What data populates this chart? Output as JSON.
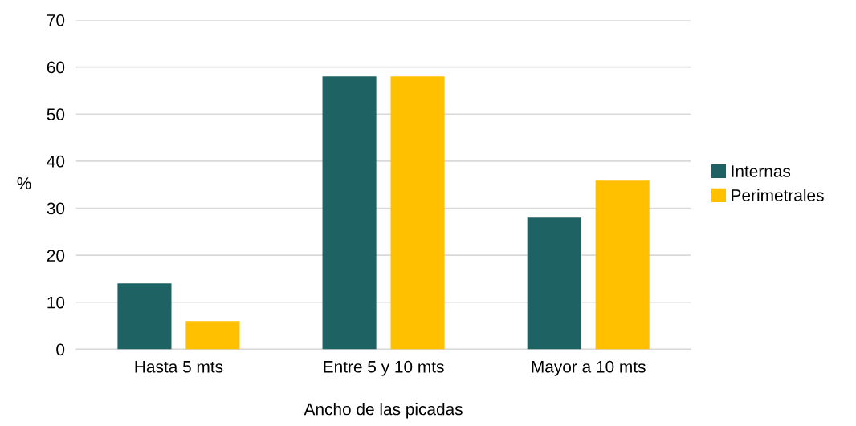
{
  "chart_data": {
    "type": "bar",
    "categories": [
      "Hasta 5 mts",
      "Entre 5 y 10 mts",
      "Mayor a 10 mts"
    ],
    "series": [
      {
        "name": "Internas",
        "color": "#1f6264",
        "values": [
          14,
          58,
          28
        ]
      },
      {
        "name": "Perimetrales",
        "color": "#ffc000",
        "values": [
          6,
          58,
          36
        ]
      }
    ],
    "xlabel": "Ancho de las picadas",
    "ylabel": "%",
    "ylim": [
      0,
      70
    ],
    "yticks": [
      0,
      10,
      20,
      30,
      40,
      50,
      60,
      70
    ],
    "grid": "y",
    "legend": "right"
  }
}
